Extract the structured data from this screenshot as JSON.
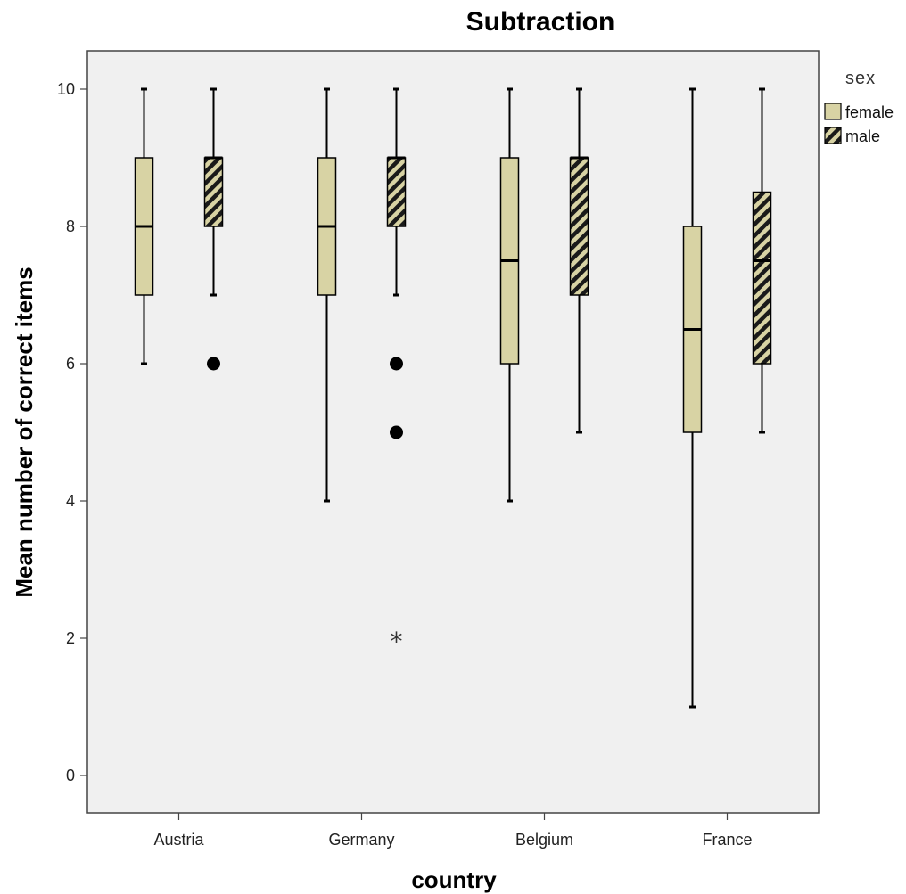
{
  "chart_data": {
    "type": "boxplot",
    "title": "Subtraction",
    "xlabel": "country",
    "ylabel": "Mean number of correct items",
    "categories": [
      "Austria",
      "Germany",
      "Belgium",
      "France"
    ],
    "ylim": [
      -0.5,
      10.5
    ],
    "yticks": [
      0,
      2,
      4,
      6,
      8,
      10
    ],
    "grid": false,
    "legend": {
      "title": "sex",
      "position": "top-right"
    },
    "colors": {
      "fill": "#d8d3a4",
      "plot_bg": "#f0f0f0",
      "stroke": "#000000"
    },
    "series": [
      {
        "name": "female",
        "pattern": "solid",
        "boxes": [
          {
            "category": "Austria",
            "min": 6,
            "q1": 7,
            "median": 8,
            "q3": 9,
            "max": 10,
            "outliers": [],
            "extremes": []
          },
          {
            "category": "Germany",
            "min": 4,
            "q1": 7,
            "median": 8,
            "q3": 9,
            "max": 10,
            "outliers": [],
            "extremes": []
          },
          {
            "category": "Belgium",
            "min": 4,
            "q1": 6,
            "median": 7.5,
            "q3": 9,
            "max": 10,
            "outliers": [],
            "extremes": []
          },
          {
            "category": "France",
            "min": 1,
            "q1": 5,
            "median": 6.5,
            "q3": 8,
            "max": 10,
            "outliers": [],
            "extremes": []
          }
        ]
      },
      {
        "name": "male",
        "pattern": "striped",
        "boxes": [
          {
            "category": "Austria",
            "min": 7,
            "q1": 8,
            "median": 9,
            "q3": 9,
            "max": 10,
            "outliers": [
              6
            ],
            "extremes": []
          },
          {
            "category": "Germany",
            "min": 7,
            "q1": 8,
            "median": 9,
            "q3": 9,
            "max": 10,
            "outliers": [
              6,
              5
            ],
            "extremes": [
              2
            ]
          },
          {
            "category": "Belgium",
            "min": 5,
            "q1": 7,
            "median": 9,
            "q3": 9,
            "max": 10,
            "outliers": [],
            "extremes": []
          },
          {
            "category": "France",
            "min": 5,
            "q1": 6,
            "median": 7.5,
            "q3": 8.5,
            "max": 10,
            "outliers": [],
            "extremes": []
          }
        ]
      }
    ]
  }
}
